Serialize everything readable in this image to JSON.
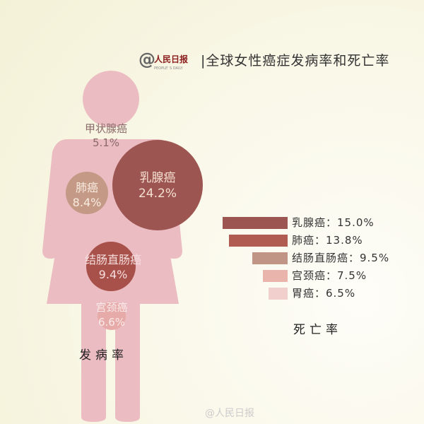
{
  "header": {
    "logo_text": "@人民日报 PEOPLE'S DAILY",
    "title": "|全球女性癌症发病率和死亡率"
  },
  "colors": {
    "figure": "#ebbcc2",
    "breast": "#9c5550",
    "lung": "#c49a87",
    "colorectal": "#a8514a",
    "cervical": "#e6aaa8",
    "bar_breast": "#9c5550",
    "bar_lung": "#b05c52",
    "bar_colorectal": "#c19585",
    "bar_cervical": "#e8b4ab",
    "bar_stomach": "#f0cfcc"
  },
  "chart_data": [
    {
      "type": "bubble",
      "title": "发病率",
      "items": [
        {
          "name": "甲状腺癌",
          "value": 5.1,
          "label": "5.1%"
        },
        {
          "name": "乳腺癌",
          "value": 24.2,
          "label": "24.2%"
        },
        {
          "name": "肺癌",
          "value": 8.4,
          "label": "8.4%"
        },
        {
          "name": "结肠直肠癌",
          "value": 9.4,
          "label": "9.4%"
        },
        {
          "name": "宫颈癌",
          "value": 6.6,
          "label": "6.6%"
        }
      ]
    },
    {
      "type": "bar",
      "title": "死亡率",
      "orientation": "horizontal",
      "categories": [
        "乳腺癌",
        "肺癌",
        "结肠直肠癌",
        "宫颈癌",
        "胃癌"
      ],
      "values": [
        15.0,
        13.8,
        9.5,
        7.5,
        6.5
      ],
      "labels": [
        "乳腺癌：15.0%",
        "肺癌：13.8%",
        "结肠直肠癌：9.5%",
        "宫颈癌：7.5%",
        "胃癌：6.5%"
      ]
    }
  ],
  "watermark": "@人民日报"
}
